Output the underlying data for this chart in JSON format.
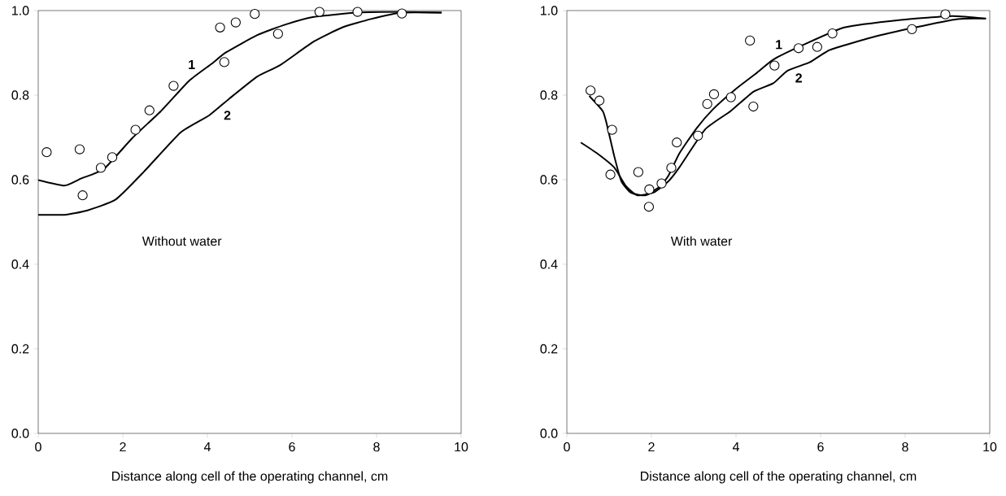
{
  "chart_data": [
    {
      "type": "line",
      "xlabel": "Distance along cell of the operating channel, cm",
      "xlim": [
        0,
        10
      ],
      "ylim": [
        0,
        1
      ],
      "xticks": [
        0,
        2,
        4,
        6,
        8,
        10
      ],
      "yticks": [
        {
          "value": 0,
          "label": "0.0"
        },
        {
          "value": 0.2,
          "label": "0.2"
        },
        {
          "value": 0.4,
          "label": "0.4"
        },
        {
          "value": 0.6,
          "label": "0.6"
        },
        {
          "value": 0.8,
          "label": "0.8"
        },
        {
          "value": 1,
          "label": "1.0"
        }
      ],
      "grid": false,
      "legend": false,
      "annotations": [
        "Without water"
      ],
      "series": [
        {
          "name": "1",
          "color": "#000000",
          "marker": "none",
          "x": [
            0,
            0.62,
            1.02,
            1.56,
            2.23,
            2.9,
            3.57,
            4.1,
            4.44,
            5.18,
            5.85,
            6.52,
            7.53,
            8.54,
            9.54
          ],
          "values": [
            0.599,
            0.586,
            0.603,
            0.626,
            0.699,
            0.762,
            0.834,
            0.874,
            0.901,
            0.942,
            0.967,
            0.985,
            0.995,
            0.997,
            0.995
          ]
        },
        {
          "name": "2",
          "color": "#000000",
          "marker": "none",
          "x": [
            0,
            0.62,
            1.15,
            1.83,
            2.5,
            3.37,
            4.04,
            4.51,
            5.18,
            5.72,
            6.52,
            7.19,
            7.87,
            8.6,
            9.54
          ],
          "values": [
            0.517,
            0.517,
            0.527,
            0.553,
            0.619,
            0.712,
            0.752,
            0.791,
            0.844,
            0.871,
            0.927,
            0.96,
            0.98,
            0.995,
            0.995
          ]
        },
        {
          "type": "scatter",
          "color": "#ffffff",
          "marker": "circle",
          "x": [
            0.2,
            0.98,
            1.05,
            1.48,
            1.75,
            2.3,
            2.63,
            3.2,
            4.3,
            4.4,
            4.67,
            5.12,
            5.67,
            6.65,
            7.55,
            8.6
          ],
          "values": [
            0.665,
            0.672,
            0.563,
            0.628,
            0.653,
            0.718,
            0.764,
            0.822,
            0.96,
            0.878,
            0.972,
            0.992,
            0.945,
            0.997,
            0.997,
            0.993
          ]
        }
      ]
    },
    {
      "type": "line",
      "xlabel": "Distance along cell of the operating channel, cm",
      "xlim": [
        0,
        10
      ],
      "ylim": [
        0,
        1
      ],
      "xticks": [
        0,
        2,
        4,
        6,
        8,
        10
      ],
      "yticks": [
        {
          "value": 0,
          "label": "0.0"
        },
        {
          "value": 0.2,
          "label": "0.2"
        },
        {
          "value": 0.4,
          "label": "0.4"
        },
        {
          "value": 0.6,
          "label": "0.6"
        },
        {
          "value": 0.8,
          "label": "0.8"
        },
        {
          "value": 1,
          "label": "1.0"
        }
      ],
      "grid": false,
      "legend": false,
      "annotations": [
        "With water"
      ],
      "series": [
        {
          "name": "1",
          "color": "#000000",
          "marker": "none",
          "x": [
            0.53,
            0.85,
            0.95,
            1.12,
            1.29,
            1.52,
            1.86,
            2.19,
            2.4,
            2.66,
            3.07,
            3.47,
            4.0,
            4.47,
            4.88,
            5.55,
            6.56,
            7.9,
            9.11,
            9.91
          ],
          "values": [
            0.798,
            0.762,
            0.729,
            0.656,
            0.596,
            0.569,
            0.563,
            0.583,
            0.609,
            0.662,
            0.722,
            0.768,
            0.815,
            0.851,
            0.884,
            0.917,
            0.96,
            0.978,
            0.987,
            0.981
          ]
        },
        {
          "name": "2",
          "color": "#000000",
          "marker": "none",
          "x": [
            0.33,
            0.72,
            1.12,
            1.39,
            1.66,
            2.06,
            2.4,
            2.66,
            3.27,
            3.87,
            4.41,
            4.88,
            5.22,
            5.75,
            6.22,
            7.23,
            8.23,
            9.24,
            9.91
          ],
          "values": [
            0.688,
            0.662,
            0.629,
            0.586,
            0.563,
            0.57,
            0.596,
            0.629,
            0.719,
            0.762,
            0.808,
            0.828,
            0.858,
            0.878,
            0.907,
            0.937,
            0.96,
            0.98,
            0.981
          ]
        },
        {
          "type": "scatter",
          "color": "#ffffff",
          "marker": "circle",
          "x": [
            0.56,
            0.77,
            1.07,
            1.03,
            1.69,
            1.95,
            1.94,
            2.24,
            2.47,
            2.6,
            3.1,
            3.32,
            3.48,
            3.88,
            4.33,
            4.41,
            4.91,
            5.48,
            5.92,
            6.28,
            8.16,
            8.95
          ],
          "values": [
            0.811,
            0.787,
            0.718,
            0.612,
            0.618,
            0.577,
            0.536,
            0.591,
            0.628,
            0.688,
            0.704,
            0.779,
            0.802,
            0.795,
            0.929,
            0.773,
            0.87,
            0.911,
            0.914,
            0.946,
            0.956,
            0.991
          ]
        }
      ]
    }
  ]
}
